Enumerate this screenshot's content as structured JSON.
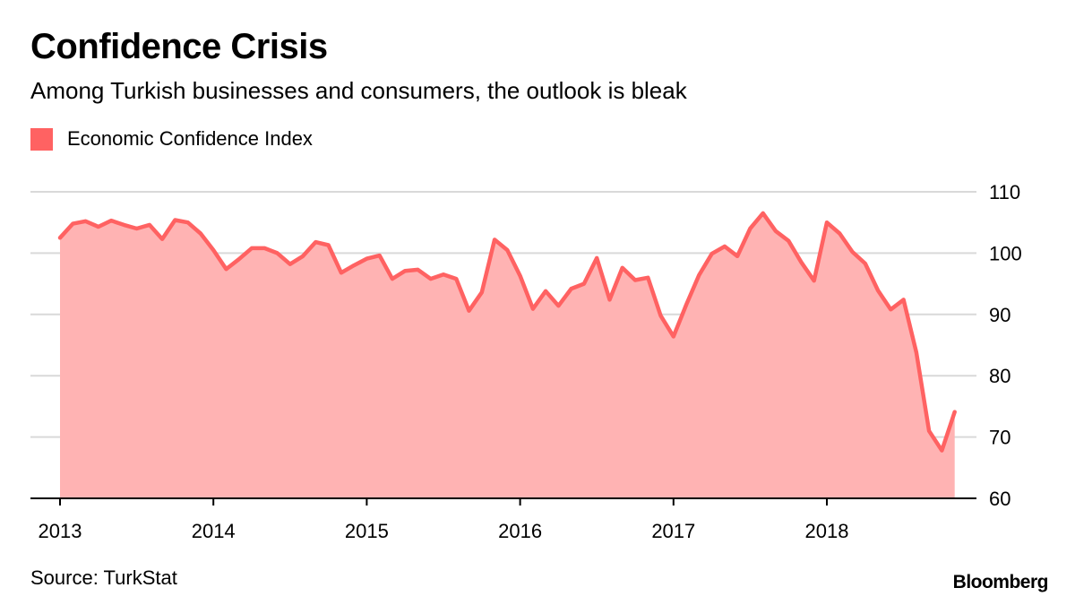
{
  "header": {
    "title": "Confidence Crisis",
    "subtitle": "Among Turkish businesses and consumers, the outlook is bleak"
  },
  "footer": {
    "source": "Source: TurkStat",
    "brand": "Bloomberg"
  },
  "colors": {
    "line": "#ff6262",
    "fill": "#ffb3b3",
    "grid": "#d9d9d9",
    "axis": "#000000"
  },
  "chart_data": {
    "type": "area",
    "title": "Confidence Crisis",
    "subtitle": "Among Turkish businesses and consumers, the outlook is bleak",
    "xlabel": "",
    "ylabel": "",
    "ylim": [
      60,
      110
    ],
    "y_ticks": [
      60,
      70,
      80,
      90,
      100,
      110
    ],
    "y_axis_side": "right",
    "grid": true,
    "legend_position": "top-left",
    "x_tick_labels": [
      {
        "label": "2013",
        "x": 2013.0
      },
      {
        "label": "2014",
        "x": 2014.0
      },
      {
        "label": "2015",
        "x": 2015.0
      },
      {
        "label": "2016",
        "x": 2016.0
      },
      {
        "label": "2017",
        "x": 2017.0
      },
      {
        "label": "2018",
        "x": 2018.0
      }
    ],
    "x_start": 2013.0,
    "x_step_months": 1,
    "series": [
      {
        "name": "Economic Confidence Index",
        "values": [
          102.5,
          104.8,
          105.2,
          104.3,
          105.3,
          104.6,
          104.0,
          104.6,
          102.3,
          105.4,
          105.0,
          103.2,
          100.5,
          97.4,
          99.0,
          100.8,
          100.8,
          100.0,
          98.2,
          99.5,
          101.8,
          101.3,
          96.8,
          98.0,
          99.1,
          99.6,
          95.8,
          97.1,
          97.3,
          95.8,
          96.5,
          95.8,
          90.6,
          93.6,
          102.2,
          100.5,
          96.3,
          90.9,
          93.8,
          91.4,
          94.2,
          95.0,
          99.2,
          92.4,
          97.6,
          95.6,
          96.0,
          89.8,
          86.4,
          91.6,
          96.4,
          99.9,
          101.1,
          99.5,
          104.0,
          106.5,
          103.6,
          102.0,
          98.5,
          95.5,
          105.0,
          103.2,
          100.2,
          98.3,
          93.9,
          90.8,
          92.4,
          83.8,
          71.0,
          67.8,
          74.1
        ]
      }
    ]
  }
}
